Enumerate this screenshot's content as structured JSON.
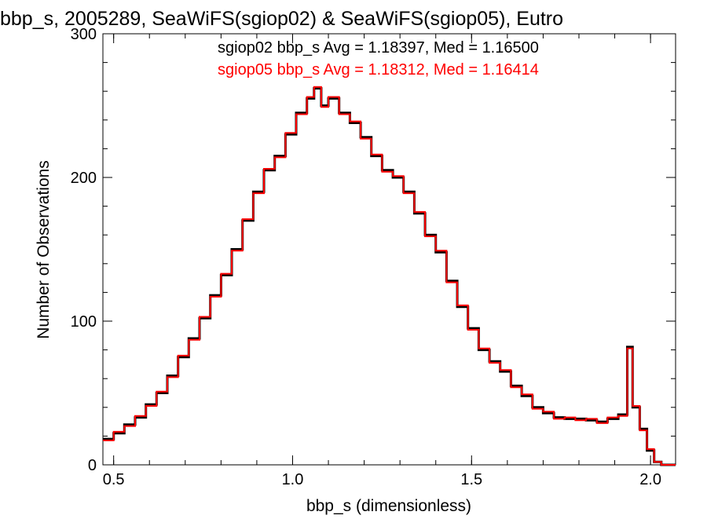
{
  "chart_data": {
    "type": "line",
    "title": "bbp_s, 2005289, SeaWiFS(sgiop02) & SeaWiFS(sgiop05), Eutro",
    "xlabel": "bbp_s (dimensionless)",
    "ylabel": "Number of Observations",
    "xlim": [
      0.47,
      2.07
    ],
    "ylim": [
      0,
      300
    ],
    "xticks": [
      0.5,
      1.0,
      1.5,
      2.0
    ],
    "xtick_labels": [
      "0.5",
      "1.0",
      "1.5",
      "2.0"
    ],
    "yticks": [
      0,
      100,
      200,
      300
    ],
    "ytick_labels": [
      "0",
      "100",
      "200",
      "300"
    ],
    "grid": false,
    "annotations": [
      {
        "text": "sgiop02 bbp_s Avg = 1.18397, Med = 1.16500",
        "color": "#000000"
      },
      {
        "text": "sgiop05 bbp_s Avg = 1.18312, Med = 1.16414",
        "color": "#ff0000"
      }
    ],
    "series": [
      {
        "color": "#000000",
        "x": [
          0.47,
          0.5,
          0.53,
          0.56,
          0.59,
          0.62,
          0.65,
          0.68,
          0.71,
          0.74,
          0.77,
          0.8,
          0.83,
          0.86,
          0.89,
          0.92,
          0.95,
          0.98,
          1.01,
          1.04,
          1.06,
          1.08,
          1.1,
          1.13,
          1.16,
          1.19,
          1.22,
          1.25,
          1.28,
          1.31,
          1.34,
          1.37,
          1.4,
          1.43,
          1.46,
          1.49,
          1.52,
          1.55,
          1.58,
          1.61,
          1.64,
          1.67,
          1.7,
          1.73,
          1.76,
          1.79,
          1.82,
          1.85,
          1.88,
          1.91,
          1.935,
          1.95,
          1.97,
          1.99,
          2.01,
          2.03,
          2.07
        ],
        "y": [
          18,
          22,
          28,
          33,
          42,
          50,
          62,
          75,
          88,
          102,
          118,
          132,
          150,
          170,
          190,
          205,
          215,
          230,
          245,
          255,
          262,
          250,
          255,
          245,
          238,
          228,
          215,
          205,
          200,
          190,
          175,
          160,
          148,
          128,
          110,
          95,
          80,
          72,
          65,
          55,
          48,
          40,
          36,
          33,
          32,
          32,
          31,
          30,
          32,
          35,
          82,
          40,
          25,
          10,
          2,
          0,
          0
        ]
      },
      {
        "color": "#ff0000",
        "x": [
          0.47,
          0.5,
          0.53,
          0.56,
          0.59,
          0.62,
          0.65,
          0.68,
          0.71,
          0.74,
          0.77,
          0.8,
          0.83,
          0.86,
          0.89,
          0.92,
          0.95,
          0.98,
          1.01,
          1.04,
          1.06,
          1.08,
          1.1,
          1.13,
          1.16,
          1.19,
          1.22,
          1.25,
          1.28,
          1.31,
          1.34,
          1.37,
          1.4,
          1.43,
          1.46,
          1.49,
          1.52,
          1.55,
          1.58,
          1.61,
          1.64,
          1.67,
          1.7,
          1.73,
          1.76,
          1.79,
          1.82,
          1.85,
          1.88,
          1.91,
          1.935,
          1.95,
          1.97,
          1.99,
          2.01,
          2.03,
          2.07
        ],
        "y": [
          17,
          23,
          27,
          34,
          41,
          51,
          61,
          76,
          87,
          103,
          117,
          133,
          149,
          171,
          189,
          206,
          214,
          231,
          244,
          256,
          263,
          249,
          256,
          244,
          239,
          227,
          216,
          204,
          201,
          189,
          176,
          159,
          149,
          127,
          111,
          94,
          81,
          71,
          66,
          54,
          49,
          39,
          37,
          32,
          33,
          31,
          32,
          29,
          33,
          34,
          81,
          41,
          24,
          11,
          2,
          0,
          0
        ]
      }
    ]
  }
}
